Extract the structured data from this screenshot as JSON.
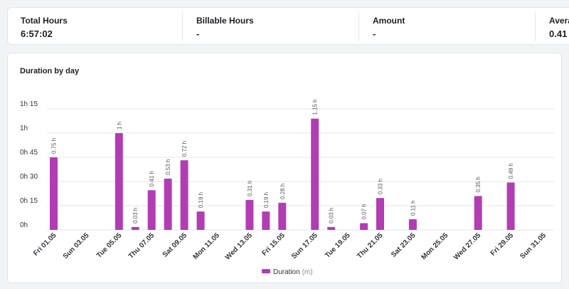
{
  "summary": {
    "total_hours_label": "Total Hours",
    "total_hours_value": "6:57:02",
    "billable_label": "Billable Hours",
    "billable_value": "-",
    "amount_label": "Amount",
    "amount_value": "-",
    "average_label": "Avera",
    "average_value": "0.41"
  },
  "colors": {
    "bar": "#b23db3",
    "grid": "#e6e6ea"
  },
  "chart_data": {
    "type": "bar",
    "title": "Duration by day",
    "y_ticks": [
      "0h",
      "0h 15",
      "0h 30",
      "0h 45",
      "1h",
      "1h 15"
    ],
    "ylim": [
      0,
      1.25
    ],
    "x_tick_labels": [
      {
        "day": 1,
        "label": "Fri 01.05"
      },
      {
        "day": 3,
        "label": "Sun 03.05"
      },
      {
        "day": 5,
        "label": "Tue 05.05"
      },
      {
        "day": 7,
        "label": "Thu 07.05"
      },
      {
        "day": 9,
        "label": "Sat 09.05"
      },
      {
        "day": 11,
        "label": "Mon 11.05"
      },
      {
        "day": 13,
        "label": "Wed 13.05"
      },
      {
        "day": 15,
        "label": "Fri 15.05"
      },
      {
        "day": 17,
        "label": "Sun 17.05"
      },
      {
        "day": 19,
        "label": "Tue 19.05"
      },
      {
        "day": 21,
        "label": "Thu 21.05"
      },
      {
        "day": 23,
        "label": "Sat 23.05"
      },
      {
        "day": 25,
        "label": "Mon 25.05"
      },
      {
        "day": 27,
        "label": "Wed 27.05"
      },
      {
        "day": 29,
        "label": "Fri 29.05"
      },
      {
        "day": 31,
        "label": "Sun 31.05"
      }
    ],
    "bars": [
      {
        "day": 1,
        "value": 0.75,
        "label": "0.75 h"
      },
      {
        "day": 5,
        "value": 1.0,
        "label": "1 h"
      },
      {
        "day": 6,
        "value": 0.03,
        "label": "0.03 h"
      },
      {
        "day": 7,
        "value": 0.41,
        "label": "0.41 h"
      },
      {
        "day": 8,
        "value": 0.53,
        "label": "0.53 h"
      },
      {
        "day": 9,
        "value": 0.72,
        "label": "0.72 h"
      },
      {
        "day": 10,
        "value": 0.19,
        "label": "0.19 h"
      },
      {
        "day": 13,
        "value": 0.31,
        "label": "0.31 h"
      },
      {
        "day": 14,
        "value": 0.19,
        "label": "0.19 h"
      },
      {
        "day": 15,
        "value": 0.28,
        "label": "0.28 h"
      },
      {
        "day": 17,
        "value": 1.15,
        "label": "1.15 h"
      },
      {
        "day": 18,
        "value": 0.03,
        "label": "0.03 h"
      },
      {
        "day": 20,
        "value": 0.07,
        "label": "0.07 h"
      },
      {
        "day": 21,
        "value": 0.33,
        "label": "0.33 h"
      },
      {
        "day": 23,
        "value": 0.11,
        "label": "0.11 h"
      },
      {
        "day": 27,
        "value": 0.35,
        "label": "0.35 h"
      },
      {
        "day": 29,
        "value": 0.49,
        "label": "0.49 h"
      }
    ],
    "legend": {
      "name": "Duration",
      "unit": "(m)"
    }
  }
}
